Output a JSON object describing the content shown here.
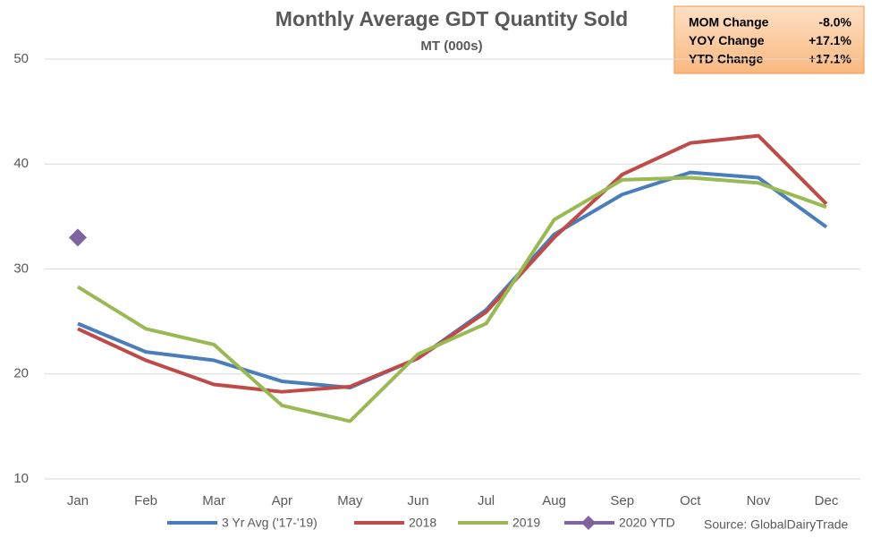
{
  "chart_data": {
    "type": "line",
    "title": "Monthly Average GDT Quantity Sold",
    "subtitle": "MT (000s)",
    "categories": [
      "Jan",
      "Feb",
      "Mar",
      "Apr",
      "May",
      "Jun",
      "Jul",
      "Aug",
      "Sep",
      "Oct",
      "Nov",
      "Dec"
    ],
    "series": [
      {
        "name": "3 Yr Avg ('17-'19)",
        "color": "#4a7ebb",
        "values": [
          24.8,
          22.1,
          21.3,
          19.3,
          18.7,
          21.5,
          26.1,
          33.3,
          37.1,
          39.2,
          38.7,
          34.0
        ]
      },
      {
        "name": "2018",
        "color": "#be4b48",
        "values": [
          24.3,
          21.3,
          19.0,
          18.3,
          18.8,
          21.5,
          25.9,
          33.0,
          39.0,
          42.0,
          42.7,
          36.2
        ]
      },
      {
        "name": "2019",
        "color": "#98b954",
        "values": [
          28.3,
          24.3,
          22.8,
          17.0,
          15.5,
          21.9,
          24.8,
          34.7,
          38.5,
          38.7,
          38.2,
          35.9
        ]
      },
      {
        "name": "2020 YTD",
        "color": "#7f63a1",
        "marker": "diamond",
        "values": [
          33.0,
          null,
          null,
          null,
          null,
          null,
          null,
          null,
          null,
          null,
          null,
          null
        ]
      }
    ],
    "ylim": [
      10,
      50
    ],
    "yticks": [
      10,
      20,
      30,
      40,
      50
    ],
    "grid": true,
    "legend": "bottom",
    "summary_box": [
      {
        "label": "MOM Change",
        "value": "-8.0%"
      },
      {
        "label": "YOY Change",
        "value": "+17.1%"
      },
      {
        "label": "YTD Change",
        "value": "+17.1%"
      }
    ],
    "source": "Source: GlobalDairyTrade"
  }
}
